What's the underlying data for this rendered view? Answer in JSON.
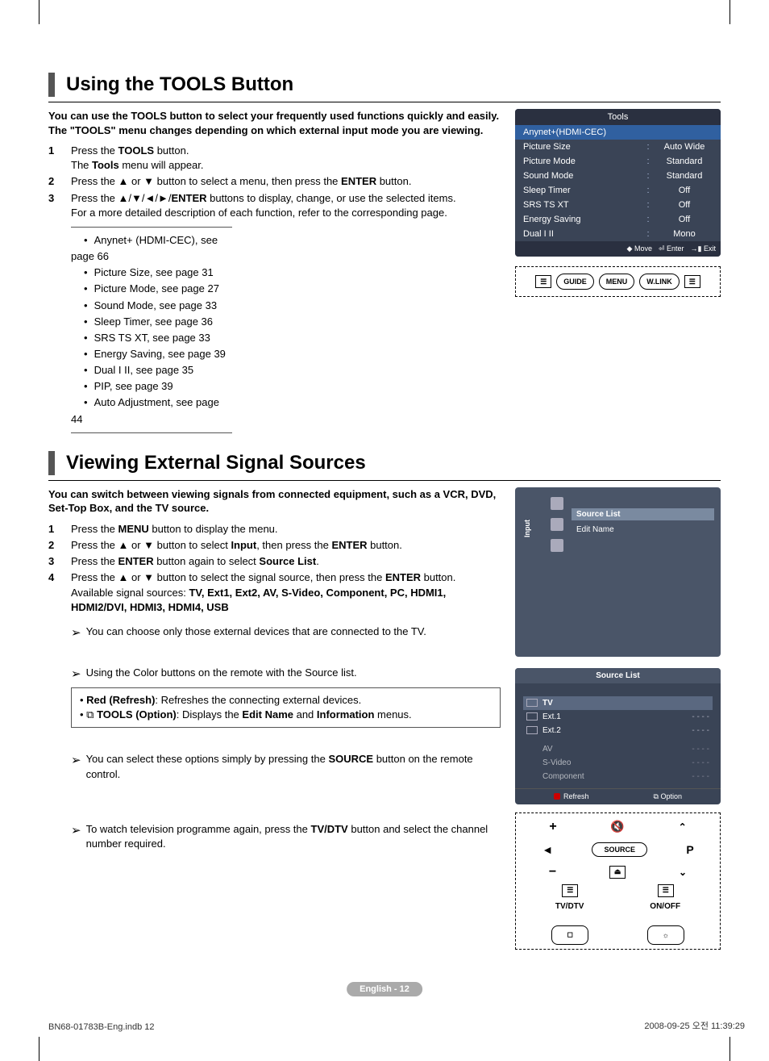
{
  "section1": {
    "title": "Using the TOOLS Button",
    "intro": "You can use the TOOLS button to select your frequently used functions quickly and easily. The \"TOOLS\" menu changes depending on which external input mode you are viewing.",
    "step1_num": "1",
    "step1": "Press the <b>TOOLS</b> button.<br>The <b>Tools</b> menu will appear.",
    "step2_num": "2",
    "step2": "Press the ▲ or ▼ button to select a menu, then press the <b>ENTER</b> button.",
    "step3_num": "3",
    "step3": "Press the ▲/▼/◄/►/<b>ENTER</b> buttons to display, change, or use the selected items.<br>For a more detailed description of each function, refer to the corresponding page.",
    "refs": [
      "Anynet+ (HDMI-CEC), see page 66",
      "Picture Size, see page 31",
      "Picture Mode, see page 27",
      "Sound Mode, see page 33",
      "Sleep Timer, see page 36",
      "SRS TS XT, see page 33",
      "Energy Saving, see page 39",
      "Dual I II, see page 35",
      "PIP, see page 39",
      "Auto Adjustment, see page 44"
    ]
  },
  "tools_osd": {
    "title": "Tools",
    "row1": {
      "label": "Anynet+(HDMI-CEC)"
    },
    "row2": {
      "label": "Picture Size",
      "val": "Auto Wide"
    },
    "row3": {
      "label": "Picture Mode",
      "val": "Standard"
    },
    "row4": {
      "label": "Sound Mode",
      "val": "Standard"
    },
    "row5": {
      "label": "Sleep Timer",
      "val": "Off"
    },
    "row6": {
      "label": "SRS TS XT",
      "val": "Off"
    },
    "row7": {
      "label": "Energy Saving",
      "val": "Off"
    },
    "row8": {
      "label": "Dual I II",
      "val": "Mono"
    },
    "f1": "◆ Move",
    "f2": "⏎ Enter",
    "f3": "→▮ Exit"
  },
  "remote1": {
    "guide": "GUIDE",
    "menu": "MENU",
    "wlink": "W.LINK",
    "tools": "TOOLS",
    "return": "RETURN"
  },
  "section2": {
    "title": "Viewing External Signal Sources",
    "intro": "You can switch between viewing signals from connected equipment, such as a VCR, DVD, Set-Top Box, and the TV source.",
    "step1_num": "1",
    "step1": "Press the <b>MENU</b> button to display the menu.",
    "step2_num": "2",
    "step2": "Press the ▲ or ▼ button to select <b>Input</b>, then press the <b>ENTER</b> button.",
    "step3_num": "3",
    "step3": "Press the <b>ENTER</b> button again to select <b>Source List</b>.",
    "step4_num": "4",
    "step4": "Press the ▲ or ▼ button to select the signal source, then press the <b>ENTER</b> button.<br>Available signal sources: <b>TV, Ext1, Ext2, AV, S-Video, Component, PC, HDMI1, HDMI2/DVI, HDMI3, HDMI4, USB</b>",
    "note1": "You can choose only those external devices that are connected to the TV.",
    "note2": "Using the Color buttons on the remote with the Source list.",
    "box": "• <b>Red (Refresh)</b>: Refreshes the connecting external devices.<br>• ⧉ <b>TOOLS (Option)</b>: Displays the <b>Edit Name</b> and <b>Information</b> menus.",
    "note3": "You can select these options simply by pressing the <b>SOURCE</b> button on the remote control.",
    "note4": "To watch television programme again, press the <b>TV/DTV</b> button and select the channel number required."
  },
  "menu_panel": {
    "side": "Input",
    "item1": "Source List",
    "item2": "Edit Name"
  },
  "src_panel": {
    "title": "Source List",
    "r1": "TV",
    "r2": "Ext.1",
    "r2d": "- - - -",
    "r3": "Ext.2",
    "r3d": "- - - -",
    "r4": "AV",
    "r4d": "- - - -",
    "r5": "S-Video",
    "r5d": "- - - -",
    "r6": "Component",
    "r6d": "- - - -",
    "f1": "Refresh",
    "f2": "⧉ Option"
  },
  "remote2": {
    "mute": "🔇",
    "p": "P",
    "source": "SOURCE",
    "tvdtv": "TV/DTV",
    "onoff": "ON/OFF"
  },
  "page_num": "English - 12",
  "footer_left": "BN68-01783B-Eng.indb   12",
  "footer_right": "2008-09-25   오전 11:39:29"
}
